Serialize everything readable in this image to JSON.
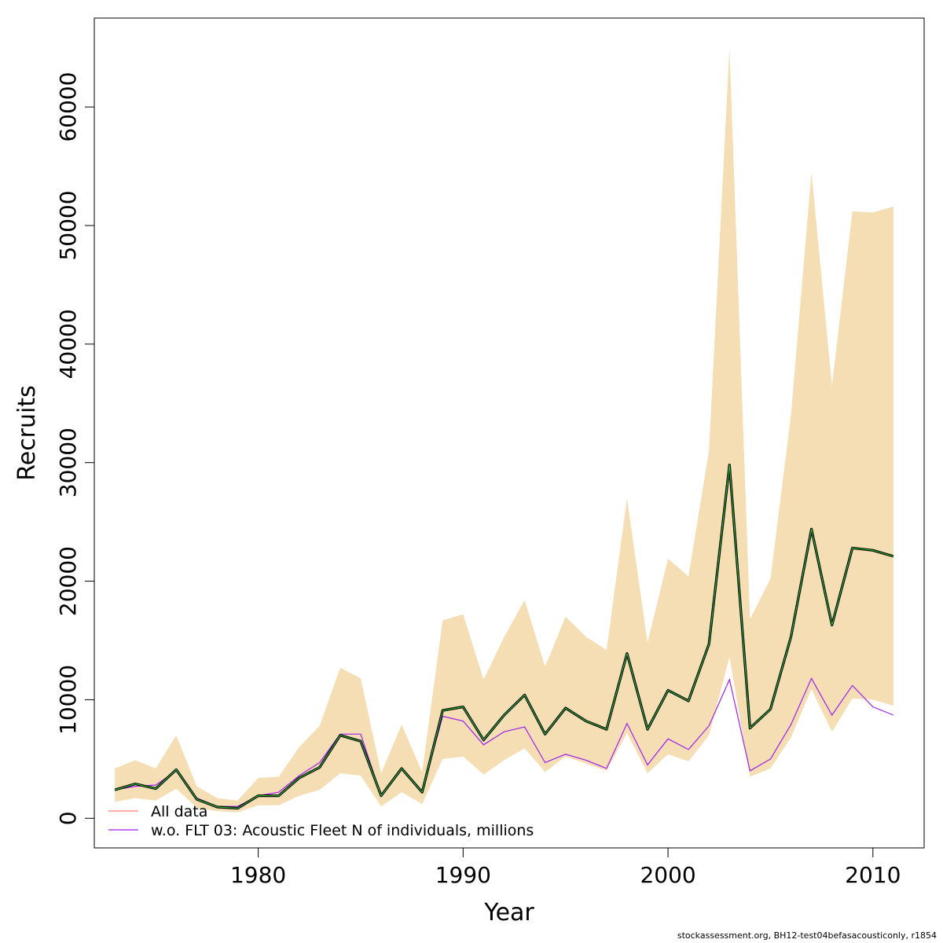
{
  "chart_data": {
    "type": "line",
    "xlabel": "Year",
    "ylabel": "Recruits",
    "xlim": [
      1972,
      2012.5
    ],
    "ylim": [
      -2500,
      67500
    ],
    "x_ticks": [
      1980,
      1990,
      2000,
      2010
    ],
    "y_ticks": [
      0,
      10000,
      20000,
      30000,
      40000,
      50000,
      60000
    ],
    "grid": false,
    "legend_position": "bottom-left",
    "x": [
      1973,
      1974,
      1975,
      1976,
      1977,
      1978,
      1979,
      1980,
      1981,
      1982,
      1983,
      1984,
      1985,
      1986,
      1987,
      1988,
      1989,
      1990,
      1991,
      1992,
      1993,
      1994,
      1995,
      1996,
      1997,
      1998,
      1999,
      2000,
      2001,
      2002,
      2003,
      2004,
      2005,
      2006,
      2007,
      2008,
      2009,
      2010,
      2011
    ],
    "band": {
      "color": "#F5DEB3",
      "upper": [
        4200,
        4900,
        4200,
        7000,
        2700,
        1700,
        1500,
        3400,
        3500,
        6000,
        7800,
        12700,
        11800,
        3800,
        7900,
        3900,
        16700,
        17200,
        11700,
        15300,
        18400,
        12800,
        17000,
        15300,
        14200,
        27000,
        14800,
        21900,
        20400,
        31000,
        65000,
        16800,
        20200,
        34000,
        54500,
        36500,
        51200,
        51100,
        51600
      ],
      "lower": [
        1400,
        1700,
        1500,
        2500,
        900,
        600,
        500,
        1100,
        1100,
        1900,
        2400,
        3800,
        3600,
        1000,
        2200,
        1200,
        5000,
        5200,
        3700,
        4900,
        5900,
        3900,
        5200,
        4600,
        4000,
        7200,
        3800,
        5400,
        4800,
        7000,
        13600,
        3500,
        4200,
        6800,
        10900,
        7300,
        10100,
        10000,
        9500
      ]
    },
    "series": [
      {
        "name": "All data",
        "color": "#FA8072",
        "values": [
          2400,
          2900,
          2500,
          4100,
          1600,
          950,
          850,
          1900,
          1900,
          3400,
          4300,
          7000,
          6500,
          1900,
          4200,
          2200,
          9100,
          9400,
          6600,
          8700,
          10400,
          7100,
          9300,
          8200,
          7500,
          13900,
          7500,
          10800,
          9900,
          14700,
          29800,
          7600,
          9200,
          15300,
          24400,
          16300,
          22800,
          22600,
          22100
        ]
      },
      {
        "name": "w.o. FLT 03: Acoustic Fleet  N of individuals, millions",
        "color": "#A020F0",
        "values": [
          2400,
          2700,
          2800,
          4000,
          1700,
          1000,
          1000,
          1900,
          2200,
          3600,
          4700,
          7100,
          7100,
          1900,
          4200,
          2200,
          8600,
          8200,
          6200,
          7300,
          7700,
          4700,
          5400,
          4900,
          4200,
          8000,
          4500,
          6700,
          5800,
          7800,
          11700,
          4000,
          5000,
          7900,
          11800,
          8700,
          11200,
          9400,
          8700
        ]
      }
    ],
    "main_line": {
      "color_outer": "#000000",
      "color_inner": "#32CD32",
      "values": [
        2400,
        2900,
        2500,
        4100,
        1600,
        950,
        850,
        1900,
        1900,
        3400,
        4300,
        7000,
        6500,
        1900,
        4200,
        2200,
        9100,
        9400,
        6600,
        8700,
        10400,
        7100,
        9300,
        8200,
        7500,
        13900,
        7500,
        10800,
        9900,
        14700,
        29800,
        7600,
        9200,
        15300,
        24400,
        16300,
        22800,
        22600,
        22100
      ]
    }
  },
  "footer": {
    "text": "stockassessment.org, BH12-test04befasacousticonly, r1854"
  }
}
